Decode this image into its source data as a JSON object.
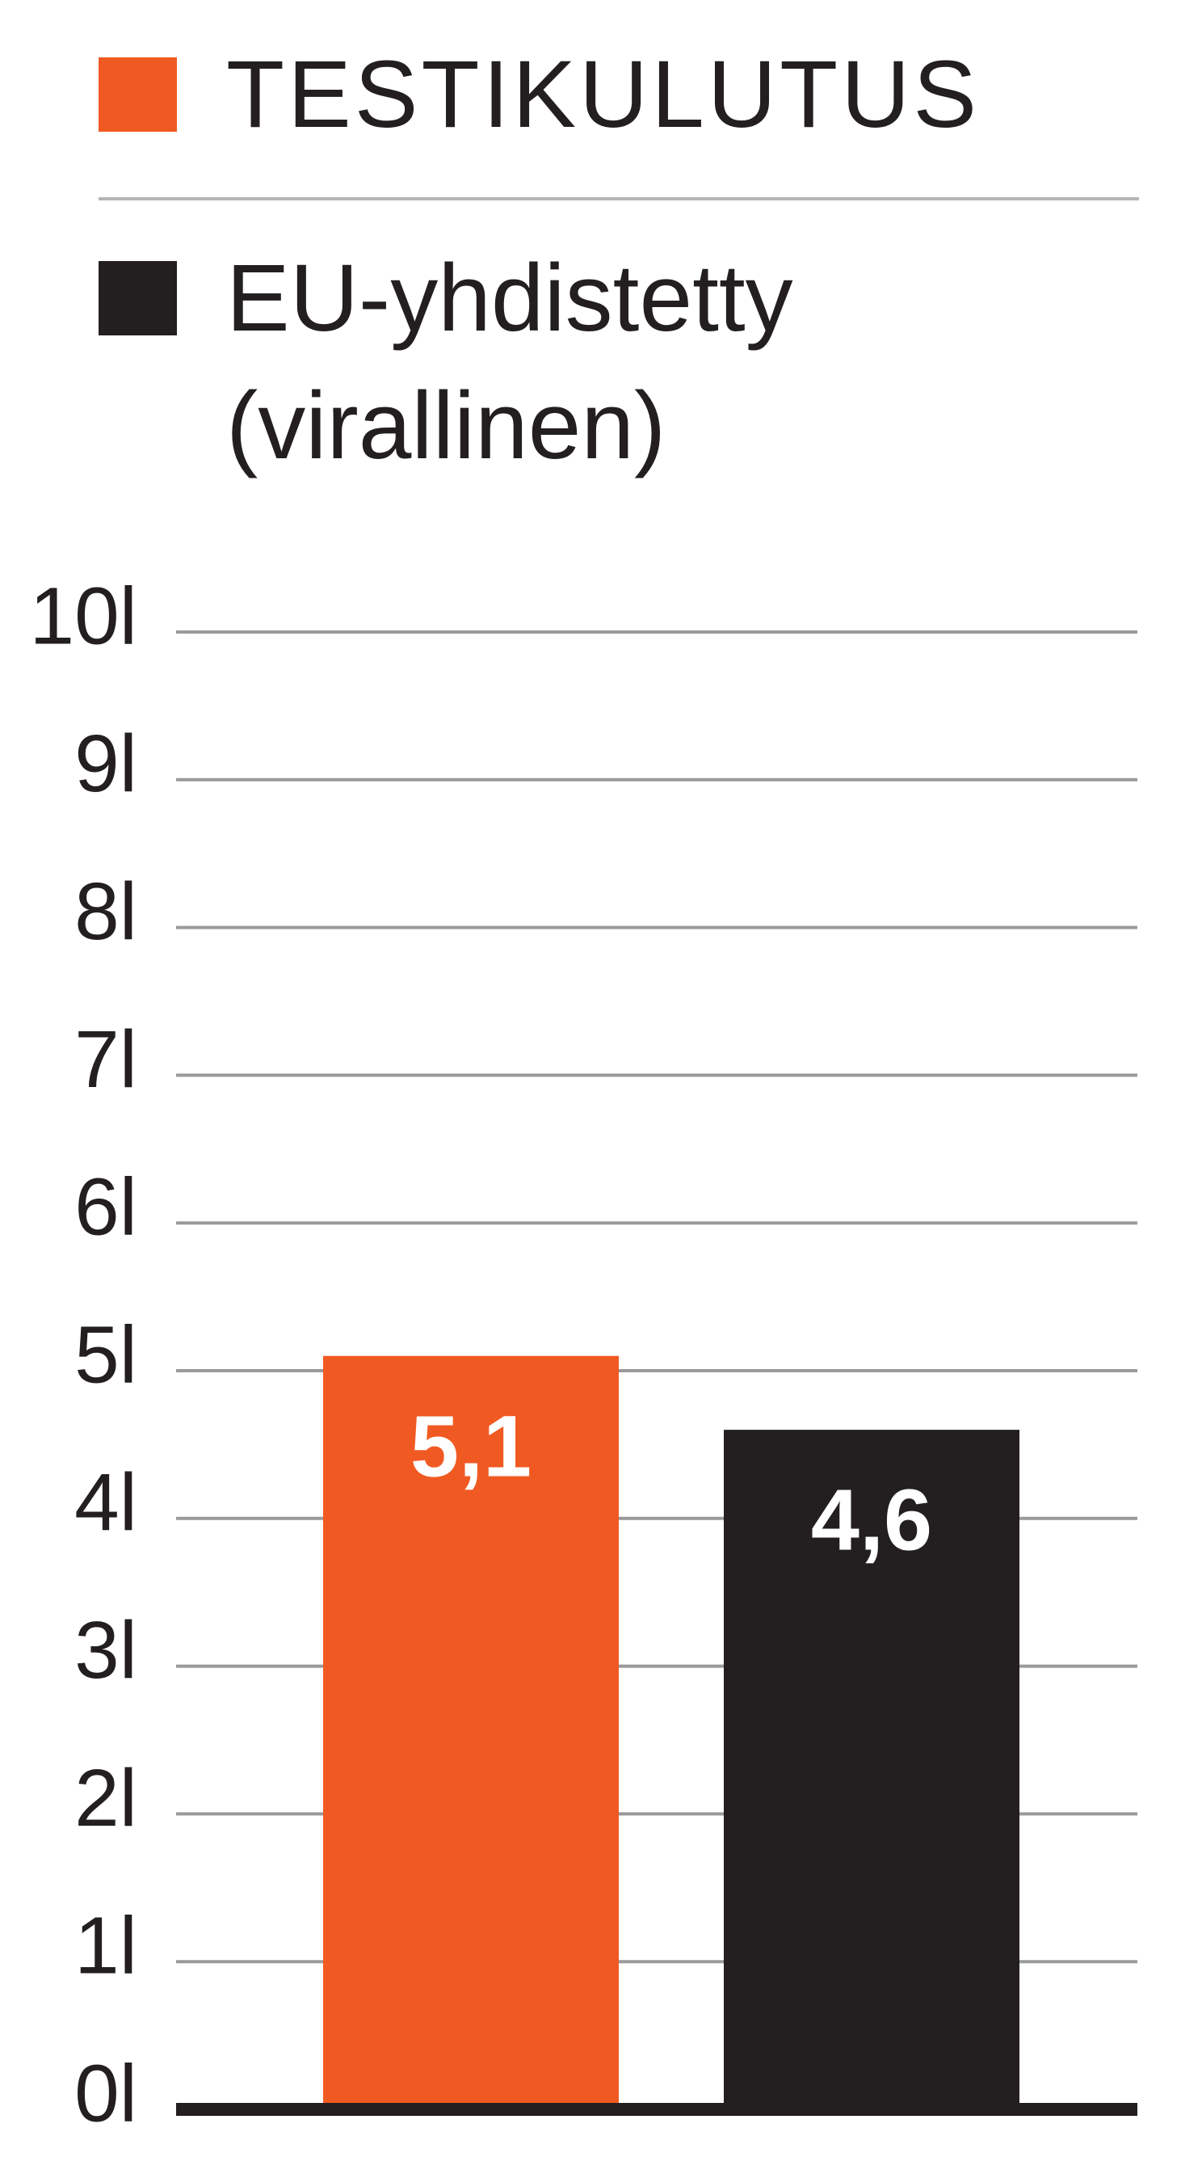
{
  "chart_data": {
    "type": "bar",
    "series": [
      {
        "name": "TESTIKULUTUS",
        "color": "#f05a22",
        "values": [
          5.1
        ],
        "value_labels": [
          "5,1"
        ]
      },
      {
        "name": "EU-yhdistetty (virallinen)",
        "color": "#231f20",
        "values": [
          4.6
        ],
        "value_labels": [
          "4,6"
        ]
      }
    ],
    "ylim": [
      0,
      10
    ],
    "yticks": [
      {
        "value": 0,
        "label": "0l"
      },
      {
        "value": 1,
        "label": "1l"
      },
      {
        "value": 2,
        "label": "2l"
      },
      {
        "value": 3,
        "label": "3l"
      },
      {
        "value": 4,
        "label": "4l"
      },
      {
        "value": 5,
        "label": "5l"
      },
      {
        "value": 6,
        "label": "6l"
      },
      {
        "value": 7,
        "label": "7l"
      },
      {
        "value": 8,
        "label": "8l"
      },
      {
        "value": 9,
        "label": "9l"
      },
      {
        "value": 10,
        "label": "10l"
      }
    ],
    "grid": true
  }
}
